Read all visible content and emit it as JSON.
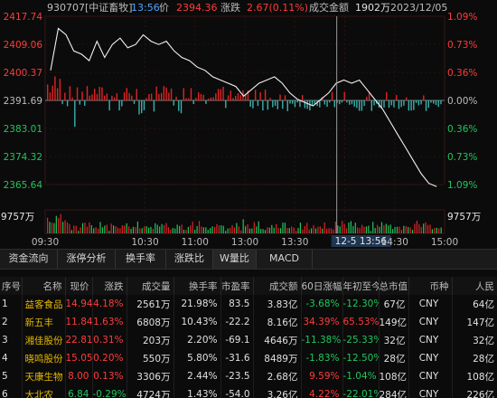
{
  "header": {
    "code_name": "930707[中证畜牧]",
    "time": "13:56",
    "price_label": "价",
    "price": "2394.36",
    "change_label": "涨跌",
    "change": "2.67(0.11%)",
    "turnover_label": "成交金额",
    "turnover": "1902万",
    "date": "2023/12/05"
  },
  "chart_data": {
    "type": "line",
    "y_ticks": [
      "2417.74",
      "2409.06",
      "2400.37",
      "2391.69",
      "2383.01",
      "2374.32",
      "2365.64"
    ],
    "pct_ticks": [
      "1.09%",
      "0.73%",
      "0.36%",
      "0.00%",
      "0.36%",
      "0.73%",
      "1.09%"
    ],
    "ylim": [
      2365.64,
      2417.74
    ],
    "prev_close": 2391.69,
    "x_ticks": [
      "09:30",
      "10:30",
      "11:00",
      "13:00",
      "13:30",
      "14:30",
      "15:00"
    ],
    "price_series": [
      2401,
      2414,
      2412,
      2407,
      2406,
      2404,
      2410,
      2405,
      2409,
      2411,
      2408,
      2409,
      2412,
      2410,
      2409,
      2410,
      2407,
      2405,
      2404,
      2402,
      2401,
      2399,
      2398,
      2397,
      2396,
      2393,
      2395,
      2397,
      2398,
      2399,
      2397,
      2394,
      2392,
      2391,
      2390,
      2392,
      2394,
      2397,
      2398,
      2397,
      2398,
      2395,
      2392,
      2389,
      2385,
      2381,
      2377,
      2373,
      2369,
      2366,
      2365
    ],
    "volume_max_label": "9757万",
    "volume_max_label_right": "9757万"
  },
  "crosshair": {
    "time_label": "12-5 13:56"
  },
  "tabs": [
    "资金流向",
    "涨停分析",
    "换手率",
    "涨跌比",
    "W量比",
    "MACD"
  ],
  "table": {
    "columns": [
      "序号",
      "名称",
      "现价",
      "涨跌",
      "成交量",
      "换手率",
      "市盈率",
      "成交额",
      "60日涨幅",
      "年初至今",
      "总市值",
      "币种",
      "人民"
    ],
    "rows": [
      {
        "idx": "1",
        "name": "益客食品",
        "price": "14.94",
        "chg": "4.18%",
        "vol": "2561万",
        "turn": "21.98%",
        "pe": "83.5",
        "amt": "3.83亿",
        "d60": "-3.68%",
        "ytd": "-12.30%",
        "cap": "67亿",
        "cur": "CNY",
        "rmb": "64亿"
      },
      {
        "idx": "2",
        "name": "新五丰",
        "price": "11.84",
        "chg": "1.63%",
        "vol": "6808万",
        "turn": "10.43%",
        "pe": "-22.2",
        "amt": "8.16亿",
        "d60": "34.39%",
        "ytd": "65.53%",
        "cap": "149亿",
        "cur": "CNY",
        "rmb": "147亿"
      },
      {
        "idx": "3",
        "name": "湘佳股份",
        "price": "22.81",
        "chg": "0.31%",
        "vol": "203万",
        "turn": "2.20%",
        "pe": "-69.1",
        "amt": "4646万",
        "d60": "-11.38%",
        "ytd": "-25.33%",
        "cap": "32亿",
        "cur": "CNY",
        "rmb": "32亿"
      },
      {
        "idx": "4",
        "name": "晓鸣股份",
        "price": "15.05",
        "chg": "0.20%",
        "vol": "550万",
        "turn": "5.80%",
        "pe": "-31.6",
        "amt": "8489万",
        "d60": "-1.83%",
        "ytd": "-12.50%",
        "cap": "28亿",
        "cur": "CNY",
        "rmb": "28亿"
      },
      {
        "idx": "5",
        "name": "天康生物",
        "price": "8.00",
        "chg": "0.13%",
        "vol": "3306万",
        "turn": "2.44%",
        "pe": "-23.5",
        "amt": "2.68亿",
        "d60": "9.59%",
        "ytd": "-1.04%",
        "cap": "108亿",
        "cur": "CNY",
        "rmb": "108亿"
      },
      {
        "idx": "6",
        "name": "大北农",
        "price": "6.84",
        "chg": "-0.29%",
        "vol": "4724万",
        "turn": "1.43%",
        "pe": "-54.0",
        "amt": "3.26亿",
        "d60": "4.22%",
        "ytd": "-22.01%",
        "cap": "284亿",
        "cur": "CNY",
        "rmb": "226亿"
      }
    ]
  }
}
